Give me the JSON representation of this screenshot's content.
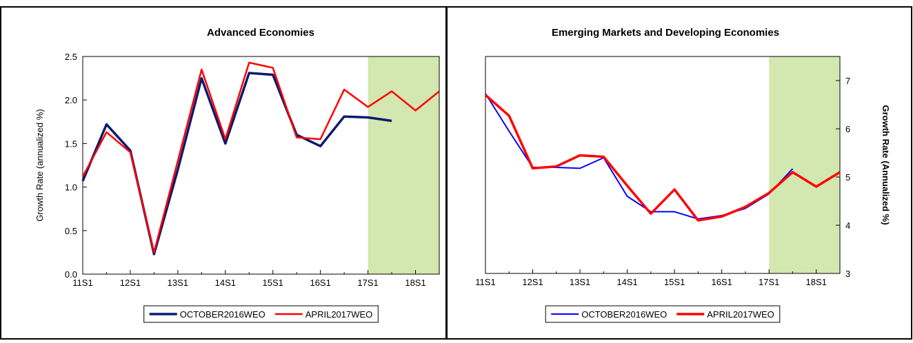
{
  "chart_data": [
    {
      "type": "line",
      "title": "Advanced Economies",
      "ylabel": "Growth Rate (annualized %)",
      "yaxis_side": "left",
      "categories": [
        "11S1",
        null,
        "12S1",
        null,
        "13S1",
        null,
        "14S1",
        null,
        "15S1",
        null,
        "16S1",
        null,
        "17S1",
        null,
        "18S1",
        null
      ],
      "series": [
        {
          "name": "OCTOBER2016WEO",
          "color": "#0a1a6e",
          "width": 3.5,
          "values": [
            1.07,
            1.72,
            1.42,
            0.23,
            1.2,
            2.25,
            1.5,
            2.31,
            2.29,
            1.6,
            1.47,
            1.81,
            1.8,
            1.76,
            null,
            null
          ]
        },
        {
          "name": "APRIL2017WEO",
          "color": "#ff0000",
          "width": 2.5,
          "values": [
            1.12,
            1.63,
            1.4,
            0.25,
            1.3,
            2.35,
            1.55,
            2.43,
            2.37,
            1.57,
            1.55,
            2.12,
            1.92,
            2.1,
            1.88,
            2.1
          ]
        }
      ],
      "ylim": [
        0,
        2.5
      ],
      "yticks": [
        {
          "value": 0,
          "label": "0.0"
        },
        0.5,
        {
          "value": 1,
          "label": "1.0"
        },
        1.5,
        {
          "value": 2,
          "label": "2.0"
        },
        2.5
      ],
      "shade_from": "17S1",
      "shade_color": "#d3e7b0"
    },
    {
      "type": "line",
      "title": "Emerging Markets and Developing Economies",
      "ylabel": "Growth Rate (Annualized %)",
      "yaxis_side": "right",
      "categories": [
        "11S1",
        null,
        "12S1",
        null,
        "13S1",
        null,
        "14S1",
        null,
        "15S1",
        null,
        "16S1",
        null,
        "17S1",
        null,
        "18S1",
        null
      ],
      "series": [
        {
          "name": "OCTOBER2016WEO",
          "color": "#0000ff",
          "width": 2,
          "values": [
            6.73,
            5.95,
            5.2,
            5.2,
            5.18,
            5.4,
            4.6,
            4.28,
            4.28,
            4.13,
            4.2,
            4.35,
            4.65,
            5.17,
            null,
            null
          ]
        },
        {
          "name": "APRIL2017WEO",
          "color": "#ff0000",
          "width": 3.5,
          "values": [
            6.7,
            6.27,
            5.18,
            5.22,
            5.45,
            5.42,
            4.82,
            4.24,
            4.74,
            4.1,
            4.18,
            4.38,
            4.67,
            5.1,
            4.8,
            5.1
          ]
        }
      ],
      "ylim": [
        3,
        7.5
      ],
      "yticks": [
        3,
        4,
        5,
        6,
        7
      ],
      "shade_from": "17S1",
      "shade_color": "#d3e7b0"
    }
  ]
}
